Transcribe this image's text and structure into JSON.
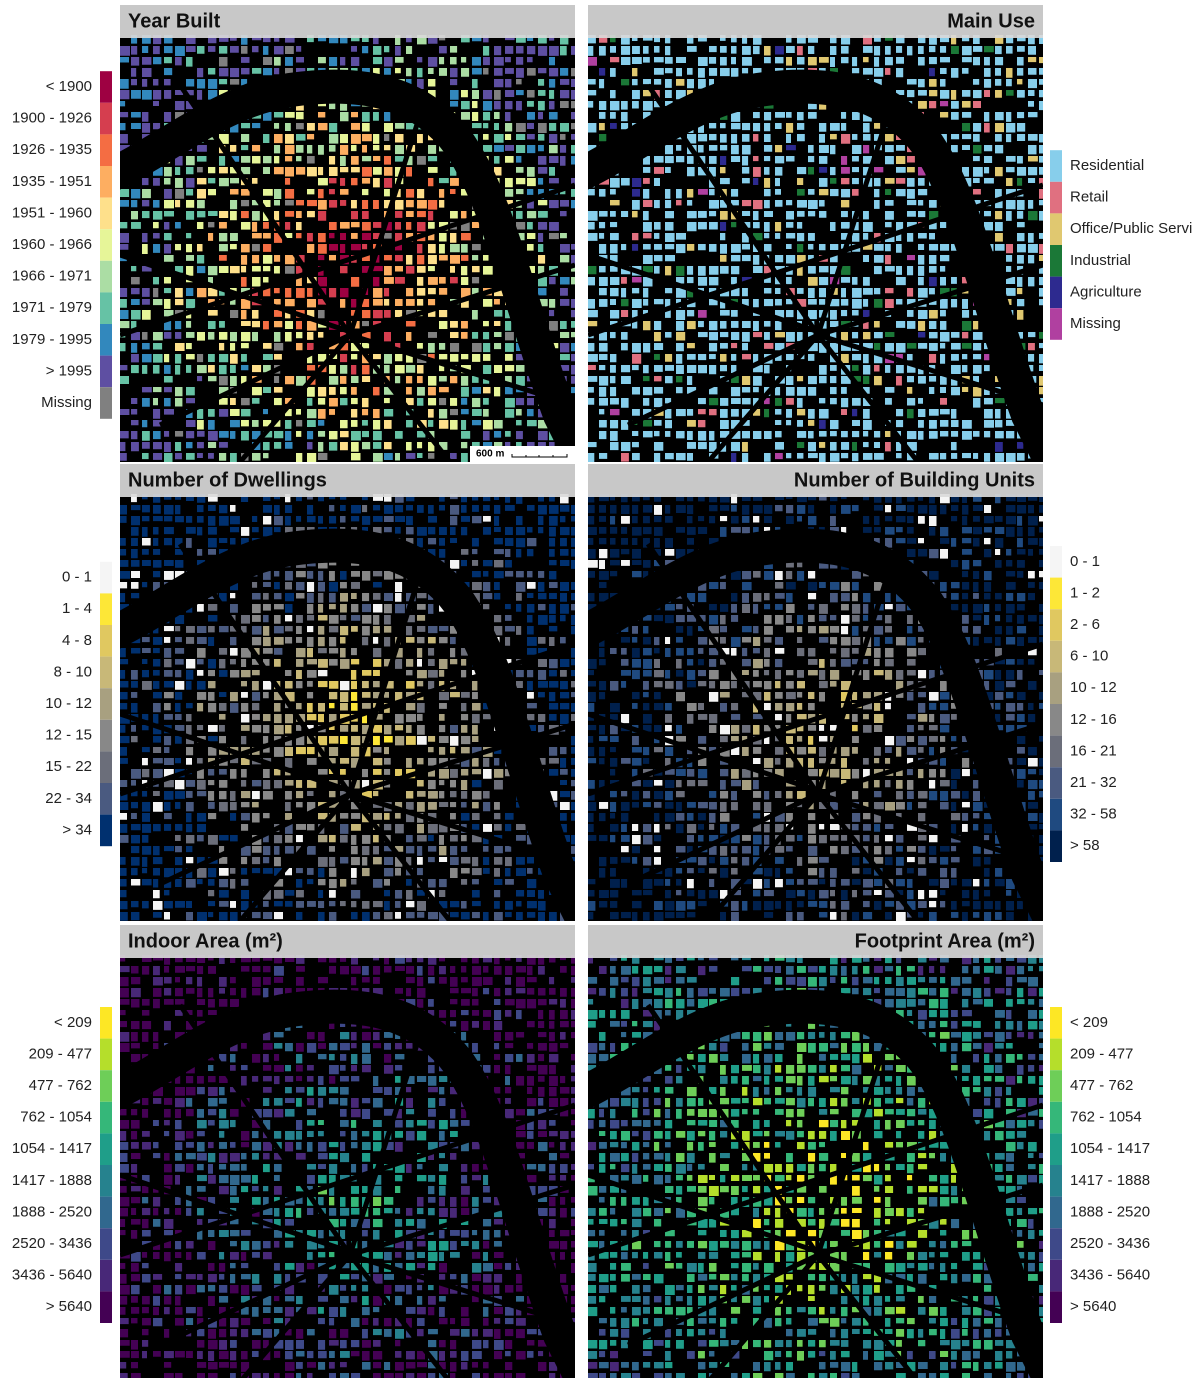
{
  "panels": [
    {
      "title": "Year Built",
      "align": "left",
      "side": "left",
      "scale_bar": "600 m",
      "legend": [
        {
          "label": "< 1900",
          "color": "#9e0142"
        },
        {
          "label": "1900 - 1926",
          "color": "#d53e4f"
        },
        {
          "label": "1926 - 1935",
          "color": "#f46d43"
        },
        {
          "label": "1935 - 1951",
          "color": "#fdae61"
        },
        {
          "label": "1951 - 1960",
          "color": "#fee08b"
        },
        {
          "label": "1960 - 1966",
          "color": "#e6f598"
        },
        {
          "label": "1966 - 1971",
          "color": "#abdda4"
        },
        {
          "label": "1971 - 1979",
          "color": "#66c2a5"
        },
        {
          "label": "1979 - 1995",
          "color": "#3288bd"
        },
        {
          "label": "> 1995",
          "color": "#5e4fa2"
        },
        {
          "label": "Missing",
          "color": "#808080"
        }
      ]
    },
    {
      "title": "Main Use",
      "align": "right",
      "side": "right",
      "legend": [
        {
          "label": "Residential",
          "color": "#87ceeb"
        },
        {
          "label": "Retail",
          "color": "#e07080"
        },
        {
          "label": "Office/Public Servi",
          "color": "#e0c870"
        },
        {
          "label": "Industrial",
          "color": "#1b7837"
        },
        {
          "label": "Agriculture",
          "color": "#2d2a8f"
        },
        {
          "label": "Missing",
          "color": "#b040a0"
        }
      ]
    },
    {
      "title": "Number of Dwellings",
      "align": "left",
      "side": "left",
      "legend": [
        {
          "label": "0 - 1",
          "color": "#f5f5f5"
        },
        {
          "label": "1 - 4",
          "color": "#fde737"
        },
        {
          "label": "4 - 8",
          "color": "#e0c860"
        },
        {
          "label": "8 - 10",
          "color": "#c8b878"
        },
        {
          "label": "10 - 12",
          "color": "#a8a080"
        },
        {
          "label": "12 - 15",
          "color": "#888888"
        },
        {
          "label": "15 - 22",
          "color": "#6b6e7a"
        },
        {
          "label": "22 - 34",
          "color": "#4a5a80"
        },
        {
          "label": "> 34",
          "color": "#00306f"
        }
      ]
    },
    {
      "title": "Number of Building Units",
      "align": "right",
      "side": "right",
      "legend": [
        {
          "label": "0 - 1",
          "color": "#f5f5f5"
        },
        {
          "label": "1 - 2",
          "color": "#fde737"
        },
        {
          "label": "2 - 6",
          "color": "#e0c860"
        },
        {
          "label": "6 - 10",
          "color": "#c8b878"
        },
        {
          "label": "10 - 12",
          "color": "#a8a080"
        },
        {
          "label": "12 - 16",
          "color": "#888888"
        },
        {
          "label": "16 - 21",
          "color": "#6b6e7a"
        },
        {
          "label": "21 - 32",
          "color": "#4a5a80"
        },
        {
          "label": "32 - 58",
          "color": "#1f4a80"
        },
        {
          "label": "> 58",
          "color": "#00204d"
        }
      ]
    },
    {
      "title": "Indoor Area (m²)",
      "align": "left",
      "side": "left",
      "legend": [
        {
          "label": "< 209",
          "color": "#fde725"
        },
        {
          "label": "209 - 477",
          "color": "#b5de2b"
        },
        {
          "label": "477 - 762",
          "color": "#6ece58"
        },
        {
          "label": "762 - 1054",
          "color": "#35b779"
        },
        {
          "label": "1054 - 1417",
          "color": "#1f9e89"
        },
        {
          "label": "1417 - 1888",
          "color": "#26828e"
        },
        {
          "label": "1888 - 2520",
          "color": "#31688e"
        },
        {
          "label": "2520 - 3436",
          "color": "#3e4989"
        },
        {
          "label": "3436 - 5640",
          "color": "#482878"
        },
        {
          "label": "> 5640",
          "color": "#440154"
        }
      ]
    },
    {
      "title": "Footprint Area (m²)",
      "align": "right",
      "side": "right",
      "legend": [
        {
          "label": "< 209",
          "color": "#fde725"
        },
        {
          "label": "209 - 477",
          "color": "#b5de2b"
        },
        {
          "label": "477 - 762",
          "color": "#6ece58"
        },
        {
          "label": "762 - 1054",
          "color": "#35b779"
        },
        {
          "label": "1054 - 1417",
          "color": "#1f9e89"
        },
        {
          "label": "1417 - 1888",
          "color": "#26828e"
        },
        {
          "label": "1888 - 2520",
          "color": "#31688e"
        },
        {
          "label": "2520 - 3436",
          "color": "#3e4989"
        },
        {
          "label": "3436 - 5640",
          "color": "#482878"
        },
        {
          "label": "> 5640",
          "color": "#440154"
        }
      ]
    }
  ]
}
